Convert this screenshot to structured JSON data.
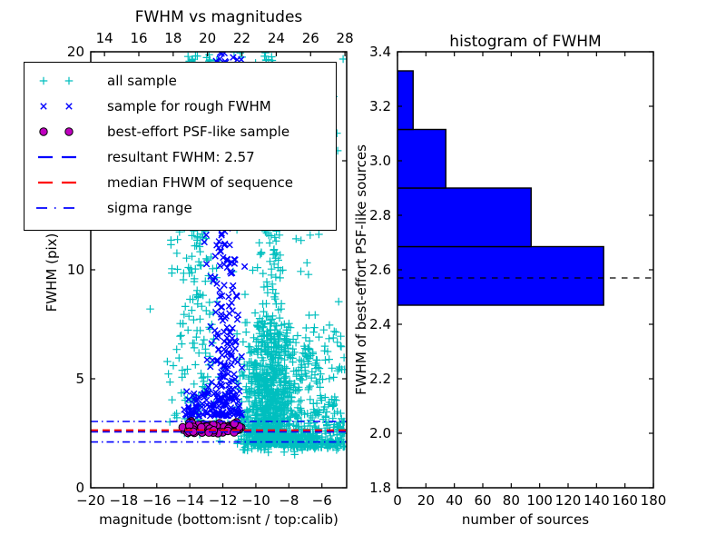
{
  "figure": {
    "background": "#ffffff"
  },
  "left_plot": {
    "title": "FWHM vs magnitudes",
    "xlabel": "magnitude (bottom:isnt / top:calib)",
    "ylabel": "FWHM (pix)"
  },
  "right_plot": {
    "title": "histogram of FWHM",
    "xlabel": "number of sources",
    "ylabel": "FWHM of best-effort PSF-like sources"
  },
  "legend": {
    "entries": [
      {
        "marker": "plus",
        "color": "#00bfbf",
        "label": "all sample"
      },
      {
        "marker": "x",
        "color": "#0000ff",
        "label": "sample for rough FWHM"
      },
      {
        "marker": "circle",
        "color": "#bf00bf",
        "edge": "#000000",
        "label": "best-effort PSF-like sample"
      },
      {
        "marker": "dashed",
        "color": "#0000ff",
        "label": "resultant FWHM: 2.57"
      },
      {
        "marker": "dashed",
        "color": "#ff0000",
        "label": "median FHWM of sequence"
      },
      {
        "marker": "dashdot",
        "color": "#0000ff",
        "label": "sigma range"
      }
    ]
  },
  "chart_data": [
    {
      "id": "scatter",
      "type": "scatter",
      "title": "FWHM vs magnitudes",
      "xlabel": "magnitude (bottom:isnt / top:calib)",
      "ylabel": "FWHM (pix)",
      "xlim": [
        -20,
        -4.5
      ],
      "xlim_top": [
        13.2,
        28.1
      ],
      "ylim": [
        0,
        20
      ],
      "x_ticks": [
        -20,
        -18,
        -16,
        -14,
        -12,
        -10,
        -8,
        -6
      ],
      "x_tick_labels": [
        "−20",
        "−18",
        "−16",
        "−14",
        "−12",
        "−10",
        "−8",
        "−6"
      ],
      "top_ticks": [
        14,
        16,
        18,
        20,
        22,
        24,
        26,
        28
      ],
      "top_tick_labels": [
        "14",
        "16",
        "18",
        "20",
        "22",
        "24",
        "26",
        "28"
      ],
      "y_ticks": [
        0,
        5,
        10,
        15,
        20
      ],
      "y_tick_labels": [
        "0",
        "5",
        "10",
        "15",
        "20"
      ],
      "grid": false,
      "legend_position": "upper left",
      "seed": 7,
      "series": [
        {
          "name": "all sample",
          "marker": "plus",
          "color": "#00bfbf",
          "points": [
            [
              -16.4,
              8.2
            ],
            [
              -15.2,
              4.85
            ]
          ],
          "clusters": [
            {
              "n": 240,
              "x": {
                "d": "n",
                "mu": -13.5,
                "s": 0.75,
                "min": -15.1,
                "max": -12.15
              },
              "y": {
                "d": "u",
                "a": 2.4,
                "b": 19.9
              }
            },
            {
              "n": 900,
              "x": {
                "d": "n",
                "mu": -9.2,
                "s": 0.75,
                "min": -11.2,
                "max": -7.1
              },
              "y": {
                "d": "p",
                "a": 2.0,
                "b": 7.6,
                "p": 2.0
              }
            },
            {
              "n": 150,
              "x": {
                "d": "n",
                "mu": -9.15,
                "s": 0.4,
                "min": -10.1,
                "max": -8.1
              },
              "y": {
                "d": "u",
                "a": 7.5,
                "b": 19.9
              }
            },
            {
              "n": 150,
              "x": {
                "d": "u",
                "a": -15.6,
                "b": -4.7
              },
              "y": {
                "d": "u",
                "a": 1.95,
                "b": 19.9
              }
            },
            {
              "n": 260,
              "x": {
                "d": "u",
                "a": -8.3,
                "b": -4.62
              },
              "y": {
                "d": "p",
                "a": 1.85,
                "b": 7.5,
                "p": 1.9
              }
            },
            {
              "n": 230,
              "x": {
                "d": "u",
                "a": -10.9,
                "b": -4.62
              },
              "y": {
                "d": "n",
                "mu": 2.25,
                "s": 0.28,
                "min": 1.5,
                "max": 2.9
              }
            },
            {
              "n": 14,
              "x": {
                "d": "u",
                "a": -13.2,
                "b": -8.3
              },
              "y": {
                "d": "u",
                "a": 19.3,
                "b": 20.0
              }
            }
          ]
        },
        {
          "name": "sample for rough FWHM",
          "marker": "x",
          "color": "#0000ff",
          "points": [],
          "clusters": [
            {
              "n": 270,
              "x": {
                "d": "n",
                "mu": -11.85,
                "s": 0.5,
                "min": -13.3,
                "max": -10.55
              },
              "y": {
                "d": "p",
                "a": 3.35,
                "b": 20.0,
                "p": 1.35
              }
            },
            {
              "n": 90,
              "x": {
                "d": "u",
                "a": -14.35,
                "b": -10.7
              },
              "y": {
                "d": "p",
                "a": 3.3,
                "b": 4.5,
                "p": 1.8
              }
            }
          ]
        },
        {
          "name": "best-effort PSF-like sample",
          "marker": "circle",
          "color": "#bf00bf",
          "edge": "#000000",
          "points": [],
          "clusters": [
            {
              "n": 74,
              "x": {
                "d": "u",
                "a": -14.45,
                "b": -10.85
              },
              "y": {
                "d": "n",
                "mu": 2.72,
                "s": 0.155,
                "min": 2.45,
                "max": 3.05
              }
            }
          ]
        }
      ],
      "lines": [
        {
          "name": "sigma range upper",
          "style": "dashdot",
          "color": "#0000ff",
          "y": 3.04
        },
        {
          "name": "sigma range lower",
          "style": "dashdot",
          "color": "#0000ff",
          "y": 2.1
        },
        {
          "name": "resultant FWHM",
          "style": "dashed",
          "color": "#0000ff",
          "y": 2.57
        },
        {
          "name": "median FHWM of sequence",
          "style": "dashed",
          "color": "#ff0000",
          "y": 2.64
        }
      ]
    },
    {
      "id": "histogram",
      "type": "bar",
      "orientation": "horizontal",
      "title": "histogram of FWHM",
      "xlabel": "number of sources",
      "ylabel": "FWHM of best-effort PSF-like sources",
      "xlim": [
        0,
        180
      ],
      "ylim": [
        1.8,
        3.4
      ],
      "x_ticks": [
        0,
        20,
        40,
        60,
        80,
        100,
        120,
        140,
        160,
        180
      ],
      "x_tick_labels": [
        "0",
        "20",
        "40",
        "60",
        "80",
        "100",
        "120",
        "140",
        "160",
        "180"
      ],
      "y_ticks": [
        1.8,
        2.0,
        2.2,
        2.4,
        2.6,
        2.8,
        3.0,
        3.2,
        3.4
      ],
      "y_tick_labels": [
        "1.8",
        "2.0",
        "2.2",
        "2.4",
        "2.6",
        "2.8",
        "3.0",
        "3.2",
        "3.4"
      ],
      "grid": false,
      "bin_edges": [
        2.47,
        2.685,
        2.9,
        3.115,
        3.33
      ],
      "counts": [
        145,
        94,
        34,
        11
      ],
      "bar_color": "#0000ff",
      "bar_edge": "#000000",
      "vline": {
        "value": 2.57,
        "style": "dashed",
        "color": "#000000",
        "label": "resultant FWHM"
      }
    }
  ]
}
